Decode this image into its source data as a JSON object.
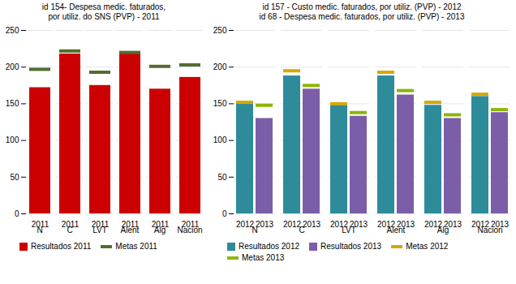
{
  "chart_data": [
    {
      "type": "bar",
      "title": "id 154- Despesa medic. faturados,\npor utiliz. do SNS (PVP) - 2011",
      "categories": [
        "N",
        "C",
        "LVT",
        "Alent",
        "Alg",
        "Nacion"
      ],
      "subcategories": [
        "2011"
      ],
      "series": [
        {
          "name": "Resultados 2011",
          "color": "#cc0000",
          "values": [
            172,
            218,
            175,
            218,
            170,
            186
          ]
        },
        {
          "name": "Metas 2011",
          "type": "tick",
          "color": "#556b2f",
          "values": [
            197,
            222,
            193,
            220,
            201,
            203
          ]
        }
      ],
      "ylim": [
        0,
        250
      ],
      "yticks": [
        0,
        50,
        100,
        150,
        200,
        250
      ],
      "grid": true,
      "legend": "bottom"
    },
    {
      "type": "bar",
      "title": "id 157 - Custo medic. faturados, por utiliz. (PVP) - 2012\nid 68 - Despesa medic. faturados, por utiliz. (PVP) - 2013",
      "categories": [
        "N",
        "C",
        "LVT",
        "Alent",
        "Alg",
        "Nacion"
      ],
      "subcategories": [
        "2012",
        "2013"
      ],
      "series": [
        {
          "name": "Resultados 2012",
          "color": "#2e8b9a",
          "values": [
            150,
            188,
            148,
            188,
            148,
            160
          ]
        },
        {
          "name": "Resultados 2013",
          "color": "#7b5ea7",
          "values": [
            130,
            170,
            133,
            162,
            130,
            138
          ]
        },
        {
          "name": "Metas 2012",
          "type": "tick",
          "color": "#d4a800",
          "values": [
            152,
            195,
            150,
            193,
            152,
            163
          ]
        },
        {
          "name": "Metas 2013",
          "type": "tick",
          "color": "#8db600",
          "values": [
            148,
            175,
            138,
            168,
            135,
            142
          ]
        }
      ],
      "ylim": [
        0,
        250
      ],
      "yticks": [
        0,
        50,
        100,
        150,
        200,
        250
      ],
      "grid": true,
      "legend": "bottom"
    }
  ]
}
